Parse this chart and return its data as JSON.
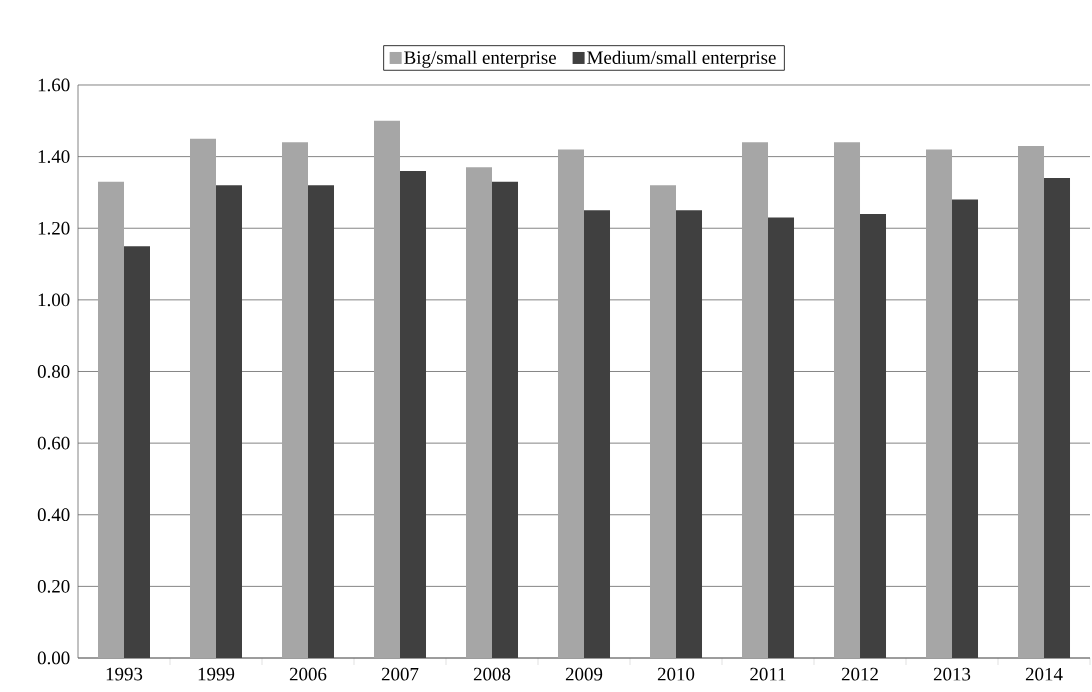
{
  "chart_data": {
    "type": "bar",
    "categories": [
      "1993",
      "1999",
      "2006",
      "2007",
      "2008",
      "2009",
      "2010",
      "2011",
      "2012",
      "2013",
      "2014"
    ],
    "series": [
      {
        "name": "Big/small enterprise",
        "color": "#a6a6a6",
        "values": [
          1.33,
          1.45,
          1.44,
          1.5,
          1.37,
          1.42,
          1.32,
          1.44,
          1.44,
          1.42,
          1.43
        ]
      },
      {
        "name": "Medium/small enterprise",
        "color": "#404040",
        "values": [
          1.15,
          1.32,
          1.32,
          1.36,
          1.33,
          1.25,
          1.25,
          1.23,
          1.24,
          1.28,
          1.34
        ]
      }
    ],
    "ylim": [
      0,
      1.6
    ],
    "yticks": [
      {
        "value": 0,
        "label": "0.00"
      },
      {
        "value": 0.2,
        "label": "0.20"
      },
      {
        "value": 0.4,
        "label": "0.40"
      },
      {
        "value": 0.6,
        "label": "0.60"
      },
      {
        "value": 0.8,
        "label": "0.80"
      },
      {
        "value": 1.0,
        "label": "1.00"
      },
      {
        "value": 1.2,
        "label": "1.20"
      },
      {
        "value": 1.4,
        "label": "1.40"
      },
      {
        "value": 1.6,
        "label": "1.60"
      }
    ],
    "grid": "y",
    "legend": "top"
  }
}
